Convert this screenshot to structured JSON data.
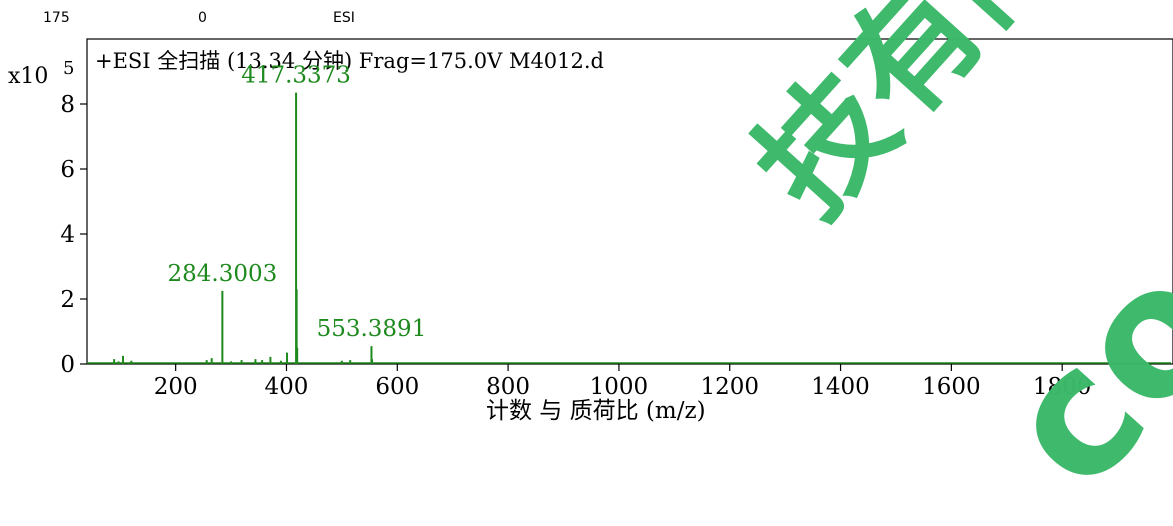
{
  "header": {
    "frag": "175",
    "cid": "0",
    "ion": "ESI"
  },
  "watermark": {
    "text1": "技有限公司",
    "text2": "com",
    "color": "#3cb86a"
  },
  "chart_data": {
    "type": "line",
    "title": "+ESI 全扫描 (13.34 分钟) Frag=175.0V M4012.d",
    "xlabel": "计数 与 质荷比 (m/z)",
    "ylabel_scale": "x10",
    "ylabel_exp": "5",
    "xlim": [
      40,
      2000
    ],
    "ylim": [
      0,
      10
    ],
    "xticks": [
      200,
      400,
      600,
      800,
      1000,
      1200,
      1400,
      1600,
      1800
    ],
    "yticks": [
      0,
      2,
      4,
      6,
      8
    ],
    "line_color": "#1e8a1e",
    "peaks": [
      {
        "mz": 89,
        "intensity": 0.15
      },
      {
        "mz": 97,
        "intensity": 0.08
      },
      {
        "mz": 105,
        "intensity": 0.25
      },
      {
        "mz": 120,
        "intensity": 0.1
      },
      {
        "mz": 256,
        "intensity": 0.12
      },
      {
        "mz": 265,
        "intensity": 0.18
      },
      {
        "mz": 284.3003,
        "intensity": 2.25
      },
      {
        "mz": 300,
        "intensity": 0.08
      },
      {
        "mz": 319,
        "intensity": 0.12
      },
      {
        "mz": 344,
        "intensity": 0.15
      },
      {
        "mz": 356,
        "intensity": 0.12
      },
      {
        "mz": 371,
        "intensity": 0.22
      },
      {
        "mz": 390,
        "intensity": 0.1
      },
      {
        "mz": 401,
        "intensity": 0.35
      },
      {
        "mz": 417.3373,
        "intensity": 8.35
      },
      {
        "mz": 418.34,
        "intensity": 2.3
      },
      {
        "mz": 419.34,
        "intensity": 0.5
      },
      {
        "mz": 500,
        "intensity": 0.1
      },
      {
        "mz": 515,
        "intensity": 0.12
      },
      {
        "mz": 553.3891,
        "intensity": 0.55
      },
      {
        "mz": 554.39,
        "intensity": 0.15
      }
    ],
    "peak_labels": [
      {
        "text": "417.3373",
        "mz": 417.3373,
        "intensity": 8.35
      },
      {
        "text": "284.3003",
        "mz": 284.3003,
        "intensity": 2.25
      },
      {
        "text": "553.3891",
        "mz": 553.3891,
        "intensity": 0.55
      }
    ],
    "grid": false,
    "legend": "none"
  }
}
